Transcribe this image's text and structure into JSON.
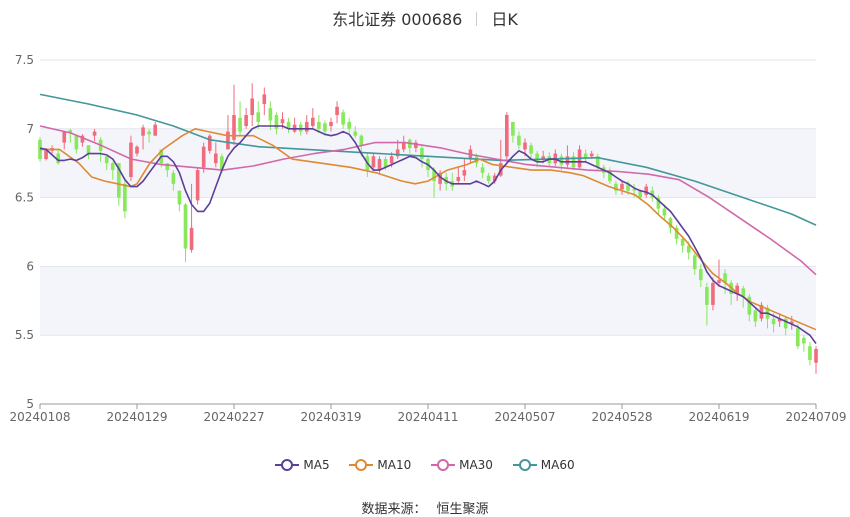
{
  "header": {
    "name": "东北证券 000686",
    "period": "日K"
  },
  "source": {
    "label": "数据来源：",
    "value": "恒生聚源"
  },
  "colors": {
    "up": "#f06b7c",
    "down": "#86e85a",
    "MA5": "#5b3f99",
    "MA10": "#de8a32",
    "MA30": "#d268aa",
    "MA60": "#43979a"
  },
  "chart_data": {
    "type": "candlestick",
    "ylim": [
      5,
      7.5
    ],
    "y_ticks": [
      "5",
      "5.5",
      "6",
      "6.5",
      "7",
      "7.5"
    ],
    "x_ticks": [
      "20240108",
      "20240129",
      "20240227",
      "20240319",
      "20240411",
      "20240507",
      "20240528",
      "20240619",
      "20240709"
    ],
    "grid": true,
    "legend_position": "bottom",
    "series_names": [
      "MA5",
      "MA10",
      "MA30",
      "MA60"
    ],
    "candles": [
      [
        6.92,
        6.78,
        6.94,
        6.76
      ],
      [
        6.78,
        6.85,
        6.86,
        6.77
      ],
      [
        6.84,
        6.86,
        6.88,
        6.82
      ],
      [
        6.82,
        6.75,
        6.85,
        6.74
      ],
      [
        6.9,
        6.98,
        6.98,
        6.85
      ],
      [
        6.99,
        6.97,
        7.0,
        6.9
      ],
      [
        6.95,
        6.85,
        6.95,
        6.82
      ],
      [
        6.9,
        6.95,
        6.96,
        6.87
      ],
      [
        6.88,
        6.82,
        6.88,
        6.78
      ],
      [
        6.95,
        6.98,
        7.0,
        6.91
      ],
      [
        6.92,
        6.84,
        6.94,
        6.76
      ],
      [
        6.8,
        6.75,
        6.8,
        6.7
      ],
      [
        6.75,
        6.7,
        6.76,
        6.63
      ],
      [
        6.75,
        6.5,
        6.75,
        6.44
      ],
      [
        6.6,
        6.4,
        6.62,
        6.35
      ],
      [
        6.65,
        6.9,
        6.95,
        6.62
      ],
      [
        6.82,
        6.87,
        6.88,
        6.8
      ],
      [
        6.95,
        7.01,
        7.03,
        6.85
      ],
      [
        6.98,
        6.96,
        7.0,
        6.9
      ],
      [
        6.95,
        7.03,
        7.05,
        6.95
      ],
      [
        6.85,
        6.75,
        6.85,
        6.72
      ],
      [
        6.75,
        6.7,
        6.75,
        6.65
      ],
      [
        6.68,
        6.6,
        6.7,
        6.55
      ],
      [
        6.55,
        6.45,
        6.55,
        6.4
      ],
      [
        6.45,
        6.13,
        6.46,
        6.03
      ],
      [
        6.12,
        6.28,
        6.6,
        6.1
      ],
      [
        6.48,
        6.7,
        6.72,
        6.45
      ],
      [
        6.72,
        6.87,
        6.9,
        6.68
      ],
      [
        6.84,
        6.95,
        6.96,
        6.82
      ],
      [
        6.75,
        6.82,
        6.9,
        6.72
      ],
      [
        6.8,
        6.7,
        6.82,
        6.68
      ],
      [
        6.85,
        6.98,
        7.1,
        6.86
      ],
      [
        6.92,
        7.1,
        7.32,
        6.88
      ],
      [
        7.08,
        6.98,
        7.2,
        6.95
      ],
      [
        7.02,
        7.1,
        7.15,
        7.0
      ],
      [
        7.1,
        7.22,
        7.33,
        7.02
      ],
      [
        7.12,
        7.05,
        7.2,
        7.0
      ],
      [
        7.18,
        7.25,
        7.3,
        7.1
      ],
      [
        7.15,
        7.06,
        7.2,
        6.99
      ],
      [
        7.1,
        7.0,
        7.12,
        6.96
      ],
      [
        7.04,
        7.07,
        7.12,
        7.0
      ],
      [
        7.05,
        7.0,
        7.08,
        6.97
      ],
      [
        6.98,
        7.03,
        7.08,
        6.97
      ],
      [
        7.03,
        6.98,
        7.05,
        6.95
      ],
      [
        6.98,
        7.05,
        7.1,
        6.96
      ],
      [
        7.02,
        7.08,
        7.15,
        7.0
      ],
      [
        7.05,
        7.0,
        7.1,
        6.97
      ],
      [
        7.04,
        6.98,
        7.06,
        6.95
      ],
      [
        7.02,
        7.05,
        7.08,
        6.98
      ],
      [
        7.1,
        7.16,
        7.2,
        7.04
      ],
      [
        7.12,
        7.03,
        7.14,
        7.0
      ],
      [
        7.05,
        7.0,
        7.08,
        6.97
      ],
      [
        6.98,
        6.95,
        7.02,
        6.93
      ],
      [
        6.95,
        6.88,
        6.96,
        6.8
      ],
      [
        6.8,
        6.7,
        6.82,
        6.65
      ],
      [
        6.72,
        6.8,
        6.82,
        6.7
      ],
      [
        6.7,
        6.78,
        6.8,
        6.68
      ],
      [
        6.78,
        6.72,
        6.8,
        6.7
      ],
      [
        6.75,
        6.8,
        6.83,
        6.72
      ],
      [
        6.8,
        6.85,
        6.92,
        6.78
      ],
      [
        6.85,
        6.9,
        6.95,
        6.83
      ],
      [
        6.92,
        6.86,
        6.93,
        6.82
      ],
      [
        6.86,
        6.9,
        6.92,
        6.83
      ],
      [
        6.86,
        6.78,
        6.88,
        6.72
      ],
      [
        6.78,
        6.7,
        6.8,
        6.65
      ],
      [
        6.7,
        6.62,
        6.72,
        6.5
      ],
      [
        6.6,
        6.68,
        6.7,
        6.55
      ],
      [
        6.65,
        6.6,
        6.68,
        6.55
      ],
      [
        6.62,
        6.58,
        6.68,
        6.55
      ],
      [
        6.62,
        6.65,
        6.72,
        6.6
      ],
      [
        6.66,
        6.7,
        6.78,
        6.62
      ],
      [
        6.78,
        6.85,
        6.88,
        6.75
      ],
      [
        6.8,
        6.75,
        6.82,
        6.72
      ],
      [
        6.72,
        6.68,
        6.75,
        6.64
      ],
      [
        6.66,
        6.62,
        6.68,
        6.6
      ],
      [
        6.62,
        6.66,
        6.68,
        6.6
      ],
      [
        6.66,
        6.75,
        6.92,
        6.65
      ],
      [
        6.8,
        7.1,
        7.12,
        6.78
      ],
      [
        7.05,
        6.95,
        7.05,
        6.9
      ],
      [
        6.95,
        6.88,
        6.98,
        6.85
      ],
      [
        6.85,
        6.9,
        6.93,
        6.8
      ],
      [
        6.88,
        6.82,
        6.9,
        6.78
      ],
      [
        6.82,
        6.76,
        6.84,
        6.72
      ],
      [
        6.78,
        6.8,
        6.84,
        6.75
      ],
      [
        6.8,
        6.75,
        6.83,
        6.72
      ],
      [
        6.75,
        6.82,
        6.85,
        6.73
      ],
      [
        6.8,
        6.74,
        6.82,
        6.7
      ],
      [
        6.74,
        6.8,
        6.88,
        6.72
      ],
      [
        6.8,
        6.72,
        6.83,
        6.7
      ],
      [
        6.72,
        6.85,
        6.88,
        6.7
      ],
      [
        6.82,
        6.78,
        6.85,
        6.75
      ],
      [
        6.8,
        6.82,
        6.84,
        6.78
      ],
      [
        6.8,
        6.72,
        6.82,
        6.7
      ],
      [
        6.72,
        6.68,
        6.74,
        6.64
      ],
      [
        6.7,
        6.62,
        6.72,
        6.6
      ],
      [
        6.6,
        6.55,
        6.62,
        6.52
      ],
      [
        6.56,
        6.6,
        6.62,
        6.52
      ],
      [
        6.6,
        6.55,
        6.62,
        6.52
      ],
      [
        6.56,
        6.55,
        6.6,
        6.5
      ],
      [
        6.55,
        6.5,
        6.56,
        6.48
      ],
      [
        6.52,
        6.58,
        6.6,
        6.5
      ],
      [
        6.55,
        6.5,
        6.58,
        6.47
      ],
      [
        6.5,
        6.42,
        6.52,
        6.38
      ],
      [
        6.42,
        6.37,
        6.45,
        6.33
      ],
      [
        6.35,
        6.28,
        6.36,
        6.24
      ],
      [
        6.28,
        6.2,
        6.3,
        6.16
      ],
      [
        6.2,
        6.15,
        6.22,
        6.1
      ],
      [
        6.15,
        6.1,
        6.18,
        6.05
      ],
      [
        6.08,
        5.98,
        6.1,
        5.94
      ],
      [
        5.98,
        5.9,
        6.02,
        5.85
      ],
      [
        5.85,
        5.72,
        5.88,
        5.57
      ],
      [
        5.72,
        5.88,
        5.92,
        5.68
      ],
      [
        5.88,
        5.9,
        6.05,
        5.85
      ],
      [
        5.95,
        5.88,
        5.98,
        5.8
      ],
      [
        5.88,
        5.8,
        5.9,
        5.72
      ],
      [
        5.8,
        5.86,
        5.88,
        5.75
      ],
      [
        5.84,
        5.78,
        5.86,
        5.7
      ],
      [
        5.78,
        5.65,
        5.8,
        5.6
      ],
      [
        5.68,
        5.6,
        5.7,
        5.56
      ],
      [
        5.62,
        5.72,
        5.74,
        5.6
      ],
      [
        5.7,
        5.62,
        5.72,
        5.55
      ],
      [
        5.62,
        5.58,
        5.66,
        5.52
      ],
      [
        5.6,
        5.62,
        5.66,
        5.56
      ],
      [
        5.62,
        5.55,
        5.64,
        5.5
      ],
      [
        5.58,
        5.6,
        5.64,
        5.54
      ],
      [
        5.55,
        5.42,
        5.58,
        5.4
      ],
      [
        5.48,
        5.44,
        5.5,
        5.38
      ],
      [
        5.42,
        5.32,
        5.45,
        5.28
      ],
      [
        5.3,
        5.4,
        5.42,
        5.22
      ]
    ],
    "ma": {
      "MA5": [
        6.86,
        6.85,
        6.81,
        6.77,
        6.77,
        6.78,
        6.77,
        6.79,
        6.82,
        6.82,
        6.82,
        6.81,
        6.78,
        6.71,
        6.63,
        6.58,
        6.58,
        6.62,
        6.68,
        6.74,
        6.8,
        6.8,
        6.76,
        6.68,
        6.55,
        6.45,
        6.4,
        6.4,
        6.46,
        6.58,
        6.7,
        6.8,
        6.86,
        6.9,
        6.95,
        7.0,
        7.02,
        7.02,
        7.02,
        7.02,
        7.02,
        7.0,
        7.0,
        7.0,
        7.0,
        7.0,
        6.98,
        6.96,
        6.95,
        6.96,
        6.98,
        6.96,
        6.9,
        6.82,
        6.75,
        6.7,
        6.7,
        6.72,
        6.74,
        6.76,
        6.78,
        6.8,
        6.79,
        6.76,
        6.74,
        6.7,
        6.65,
        6.62,
        6.6,
        6.6,
        6.6,
        6.6,
        6.62,
        6.6,
        6.58,
        6.62,
        6.7,
        6.75,
        6.8,
        6.84,
        6.82,
        6.78,
        6.76,
        6.76,
        6.78,
        6.78,
        6.76,
        6.76,
        6.76,
        6.76,
        6.76,
        6.74,
        6.72,
        6.7,
        6.68,
        6.65,
        6.62,
        6.6,
        6.57,
        6.55,
        6.54,
        6.52,
        6.48,
        6.44,
        6.4,
        6.34,
        6.28,
        6.22,
        6.14,
        6.06,
        5.96,
        5.9,
        5.86,
        5.84,
        5.82,
        5.8,
        5.78,
        5.74,
        5.7,
        5.66,
        5.66,
        5.64,
        5.62,
        5.6,
        5.58,
        5.56,
        5.53,
        5.5,
        5.44
      ]
    },
    "ma_points": {
      "MA10": [
        [
          0,
          6.85
        ],
        [
          6,
          6.85
        ],
        [
          12,
          6.75
        ],
        [
          16,
          6.65
        ],
        [
          20,
          6.62
        ],
        [
          24,
          6.6
        ],
        [
          28,
          6.58
        ],
        [
          30,
          6.6
        ],
        [
          34,
          6.75
        ],
        [
          38,
          6.85
        ],
        [
          44,
          6.95
        ],
        [
          48,
          7.0
        ],
        [
          52,
          6.98
        ],
        [
          58,
          6.95
        ],
        [
          66,
          6.95
        ],
        [
          72,
          6.88
        ],
        [
          78,
          6.78
        ],
        [
          84,
          6.76
        ],
        [
          90,
          6.74
        ],
        [
          96,
          6.72
        ],
        [
          104,
          6.68
        ],
        [
          108,
          6.65
        ],
        [
          112,
          6.62
        ],
        [
          116,
          6.6
        ],
        [
          120,
          6.62
        ],
        [
          126,
          6.7
        ],
        [
          132,
          6.74
        ],
        [
          136,
          6.78
        ],
        [
          140,
          6.74
        ],
        [
          146,
          6.72
        ],
        [
          152,
          6.7
        ],
        [
          158,
          6.7
        ],
        [
          164,
          6.68
        ],
        [
          168,
          6.66
        ],
        [
          172,
          6.62
        ],
        [
          176,
          6.58
        ],
        [
          180,
          6.55
        ],
        [
          184,
          6.52
        ],
        [
          188,
          6.45
        ],
        [
          192,
          6.36
        ],
        [
          196,
          6.28
        ],
        [
          200,
          6.18
        ],
        [
          204,
          6.06
        ],
        [
          208,
          5.95
        ],
        [
          212,
          5.88
        ],
        [
          216,
          5.8
        ],
        [
          220,
          5.74
        ],
        [
          224,
          5.7
        ],
        [
          228,
          5.66
        ],
        [
          232,
          5.62
        ],
        [
          236,
          5.58
        ],
        [
          240,
          5.54
        ]
      ],
      "MA30": [
        [
          0,
          7.02
        ],
        [
          10,
          6.97
        ],
        [
          20,
          6.88
        ],
        [
          30,
          6.78
        ],
        [
          40,
          6.74
        ],
        [
          50,
          6.72
        ],
        [
          60,
          6.7
        ],
        [
          70,
          6.73
        ],
        [
          80,
          6.78
        ],
        [
          90,
          6.82
        ],
        [
          100,
          6.85
        ],
        [
          110,
          6.9
        ],
        [
          120,
          6.9
        ],
        [
          126,
          6.88
        ],
        [
          132,
          6.86
        ],
        [
          140,
          6.82
        ],
        [
          150,
          6.78
        ],
        [
          160,
          6.74
        ],
        [
          170,
          6.72
        ],
        [
          180,
          6.7
        ],
        [
          190,
          6.69
        ],
        [
          200,
          6.67
        ],
        [
          210,
          6.63
        ],
        [
          220,
          6.5
        ],
        [
          230,
          6.35
        ],
        [
          240,
          6.2
        ],
        [
          250,
          6.04
        ],
        [
          255,
          5.94
        ]
      ],
      "MA60": [
        [
          0,
          7.25
        ],
        [
          20,
          7.18
        ],
        [
          40,
          7.1
        ],
        [
          55,
          7.02
        ],
        [
          70,
          6.92
        ],
        [
          90,
          6.87
        ],
        [
          110,
          6.85
        ],
        [
          130,
          6.83
        ],
        [
          150,
          6.81
        ],
        [
          170,
          6.79
        ],
        [
          190,
          6.77
        ],
        [
          210,
          6.78
        ],
        [
          230,
          6.79
        ],
        [
          250,
          6.72
        ],
        [
          270,
          6.62
        ],
        [
          290,
          6.5
        ],
        [
          310,
          6.38
        ],
        [
          320,
          6.3
        ]
      ]
    },
    "ma_points_domain": {
      "MA10": [
        0,
        240
      ],
      "MA30": [
        0,
        255
      ],
      "MA60": [
        0,
        320
      ]
    }
  }
}
